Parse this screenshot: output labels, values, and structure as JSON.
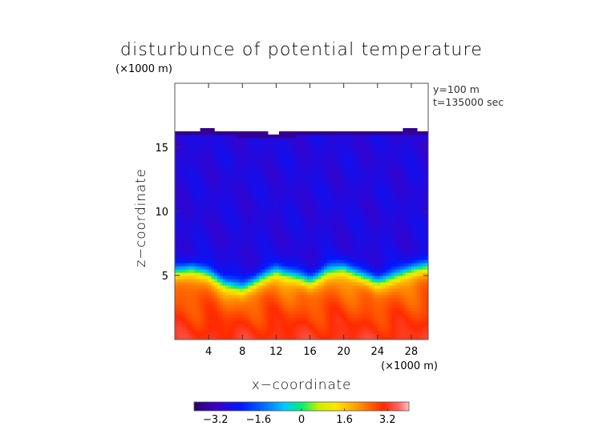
{
  "chart_data": {
    "type": "heatmap",
    "title": "disturbunce of potential temperature",
    "xlabel": "x−coordinate",
    "ylabel": "z−coordinate",
    "x_unit": "(×1000 m)",
    "y_unit": "(×1000 m)",
    "xlim": [
      0,
      30
    ],
    "ylim": [
      0,
      20
    ],
    "x_ticks": [
      4,
      8,
      12,
      16,
      20,
      24,
      28
    ],
    "y_ticks": [
      5,
      10,
      15
    ],
    "annotations": [
      "y=100 m",
      "t=135000 sec"
    ],
    "colorbar": {
      "range": [
        -4,
        4
      ],
      "ticks": [
        -3.2,
        -1.6,
        0,
        1.6,
        3.2
      ],
      "tick_labels": [
        "−3.2",
        "−1.6",
        "0",
        "1.6",
        "3.2"
      ]
    },
    "field": {
      "upper_value": -2.8,
      "lower_value": 2.2,
      "surface_value": 3.3,
      "interface_height": [
        [
          0,
          5.3
        ],
        [
          2,
          5.6
        ],
        [
          4,
          5.2
        ],
        [
          6,
          4.4
        ],
        [
          8,
          4.0
        ],
        [
          10,
          4.8
        ],
        [
          12,
          5.4
        ],
        [
          14,
          5.0
        ],
        [
          16,
          4.6
        ],
        [
          18,
          5.4
        ],
        [
          20,
          5.6
        ],
        [
          22,
          5.0
        ],
        [
          24,
          4.6
        ],
        [
          26,
          5.0
        ],
        [
          28,
          5.5
        ],
        [
          30,
          5.8
        ]
      ],
      "data_top_height": [
        [
          0,
          16.3
        ],
        [
          4,
          16.4
        ],
        [
          8,
          16.2
        ],
        [
          12,
          16.1
        ],
        [
          16,
          16.3
        ],
        [
          20,
          16.35
        ],
        [
          24,
          16.3
        ],
        [
          28,
          16.4
        ],
        [
          30,
          16.3
        ]
      ]
    },
    "grid": false,
    "colormap": "rainbow"
  }
}
